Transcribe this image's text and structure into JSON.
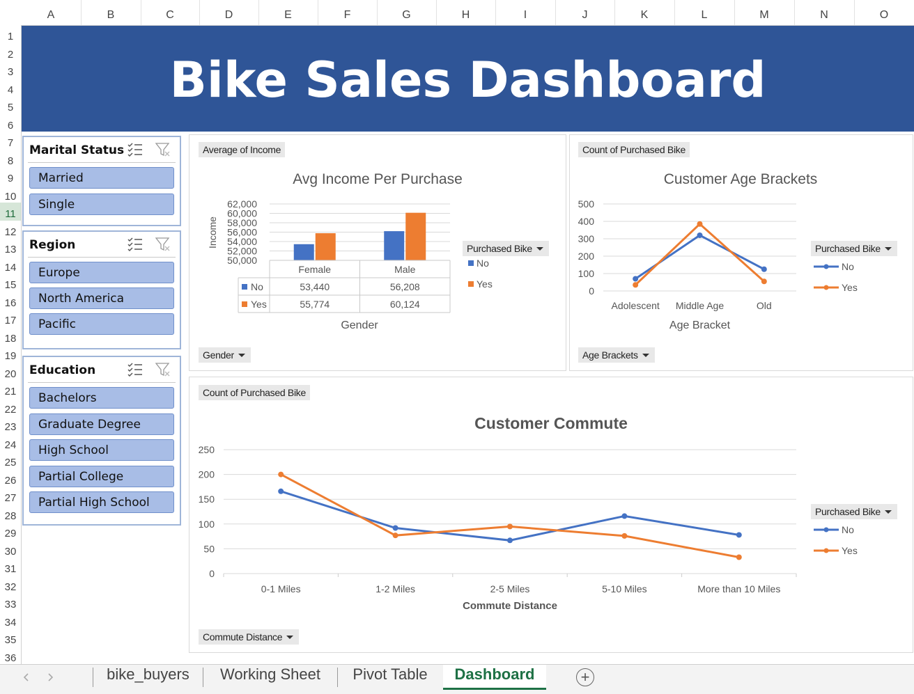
{
  "sheet": {
    "columns": [
      "A",
      "B",
      "C",
      "D",
      "E",
      "F",
      "G",
      "H",
      "I",
      "J",
      "K",
      "L",
      "M",
      "N",
      "O"
    ],
    "rows": [
      "1",
      "2",
      "3",
      "4",
      "5",
      "6",
      "7",
      "8",
      "9",
      "10",
      "11",
      "12",
      "13",
      "14",
      "15",
      "16",
      "17",
      "18",
      "19",
      "20",
      "21",
      "22",
      "23",
      "24",
      "25",
      "26",
      "27",
      "28",
      "29",
      "30",
      "31",
      "32",
      "33",
      "34",
      "35",
      "36"
    ],
    "selected_row": "11"
  },
  "banner": {
    "title": "Bike Sales Dashboard",
    "color": "#2f5597"
  },
  "slicers": {
    "marital": {
      "title": "Marital Status",
      "items": [
        "Married",
        "Single"
      ]
    },
    "region": {
      "title": "Region",
      "items": [
        "Europe",
        "North America",
        "Pacific"
      ]
    },
    "education": {
      "title": "Education",
      "items": [
        "Bachelors",
        "Graduate Degree",
        "High School",
        "Partial College",
        "Partial High School"
      ]
    }
  },
  "income_panel": {
    "value_button": "Average of Income",
    "axis_button": "Gender",
    "legend_button": "Purchased Bike"
  },
  "age_panel": {
    "value_button": "Count of Purchased Bike",
    "axis_button": "Age Brackets",
    "legend_button": "Purchased Bike"
  },
  "commute_panel": {
    "value_button": "Count of Purchased Bike",
    "axis_button": "Commute Distance",
    "legend_button": "Purchased Bike"
  },
  "tabs": {
    "items": [
      "bike_buyers",
      "Working Sheet",
      "Pivot Table",
      "Dashboard"
    ],
    "active": "Dashboard",
    "add_label": "+"
  },
  "colors": {
    "no": "#4472c4",
    "yes": "#ed7d31",
    "slicer_item": "#a8bde6",
    "tab_active": "#1e7145"
  },
  "chart_data": [
    {
      "type": "bar",
      "title": "Avg Income Per Purchase",
      "xlabel": "Gender",
      "ylabel": "Income",
      "categories": [
        "Female",
        "Male"
      ],
      "series": [
        {
          "name": "No",
          "values": [
            53440,
            56208
          ],
          "labels": [
            "53,440",
            "56,208"
          ]
        },
        {
          "name": "Yes",
          "values": [
            55774,
            60124
          ],
          "labels": [
            "55,774",
            "60,124"
          ]
        }
      ],
      "ylim": [
        50000,
        62000
      ],
      "yticks": [
        "50,000",
        "52,000",
        "54,000",
        "56,000",
        "58,000",
        "60,000",
        "62,000"
      ],
      "legend": "right",
      "data_table": true,
      "grid": true
    },
    {
      "type": "line",
      "title": "Customer Age Brackets",
      "xlabel": "Age Bracket",
      "ylabel": "",
      "categories": [
        "Adolescent",
        "Middle Age",
        "Old"
      ],
      "series": [
        {
          "name": "No",
          "values": [
            70,
            320,
            125
          ]
        },
        {
          "name": "Yes",
          "values": [
            35,
            385,
            55
          ]
        }
      ],
      "ylim": [
        0,
        500
      ],
      "yticks": [
        "0",
        "100",
        "200",
        "300",
        "400",
        "500"
      ],
      "legend": "right",
      "grid": true
    },
    {
      "type": "line",
      "title": "Customer Commute",
      "xlabel": "Commute Distance",
      "ylabel": "",
      "categories": [
        "0-1 Miles",
        "1-2 Miles",
        "2-5 Miles",
        "5-10 Miles",
        "More than 10 Miles"
      ],
      "series": [
        {
          "name": "No",
          "values": [
            166,
            92,
            67,
            116,
            78
          ]
        },
        {
          "name": "Yes",
          "values": [
            200,
            77,
            95,
            76,
            33
          ]
        }
      ],
      "ylim": [
        0,
        250
      ],
      "yticks": [
        "0",
        "50",
        "100",
        "150",
        "200",
        "250"
      ],
      "legend": "right",
      "grid": true
    }
  ]
}
